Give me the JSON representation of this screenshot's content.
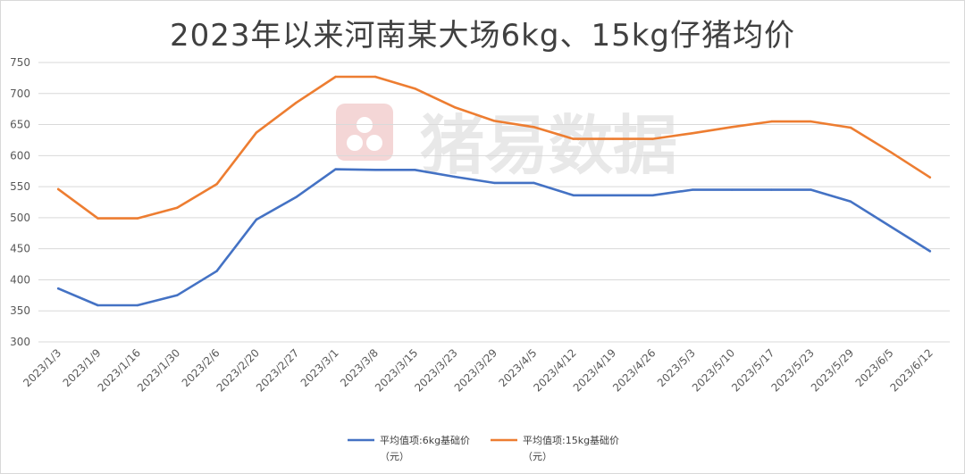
{
  "chart_data": {
    "type": "line",
    "title": "2023年以来河南某大场6kg、15kg仔猪均价",
    "categories": [
      "2023/1/3",
      "2023/1/9",
      "2023/1/16",
      "2023/1/30",
      "2023/2/6",
      "2023/2/20",
      "2023/2/27",
      "2023/3/1",
      "2023/3/8",
      "2023/3/15",
      "2023/3/23",
      "2023/3/29",
      "2023/4/5",
      "2023/4/12",
      "2023/4/19",
      "2023/4/26",
      "2023/5/3",
      "2023/5/10",
      "2023/5/17",
      "2023/5/23",
      "2023/5/29",
      "2023/6/5",
      "2023/6/12"
    ],
    "series": [
      {
        "name": "平均值项:6kg基础价（元）",
        "legend_line1": "平均值项:6kg基础价",
        "legend_line2": "（元）",
        "color": "#4472C4",
        "values": [
          386,
          359,
          359,
          375,
          414,
          497,
          533,
          578,
          577,
          577,
          566,
          556,
          556,
          536,
          536,
          536,
          545,
          545,
          545,
          545,
          526,
          486,
          446
        ]
      },
      {
        "name": "平均值项:15kg基础价（元）",
        "legend_line1": "平均值项:15kg基础价",
        "legend_line2": "（元）",
        "color": "#ED7D31",
        "values": [
          546,
          499,
          499,
          516,
          554,
          637,
          685,
          727,
          727,
          708,
          678,
          656,
          646,
          627,
          627,
          627,
          636,
          646,
          655,
          655,
          645,
          606,
          565
        ]
      }
    ],
    "yticks": [
      300,
      350,
      400,
      450,
      500,
      550,
      600,
      650,
      700,
      750
    ],
    "ylim": [
      300,
      750
    ],
    "grid": true,
    "legend": "bottom"
  },
  "watermark": "猪易数据"
}
